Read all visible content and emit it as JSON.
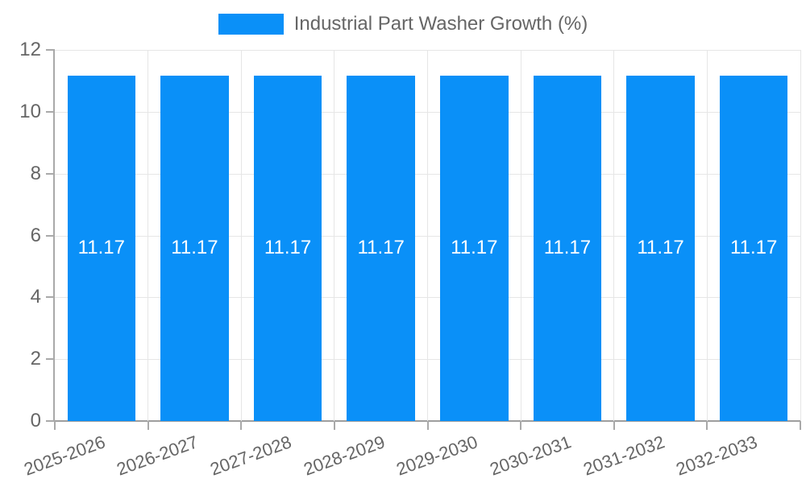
{
  "chart_data": {
    "type": "bar",
    "title": "",
    "legend": {
      "label": "Industrial Part Washer Growth (%)",
      "position": "top"
    },
    "categories": [
      "2025-2026",
      "2026-2027",
      "2027-2028",
      "2028-2029",
      "2029-2030",
      "2030-2031",
      "2031-2032",
      "2032-2033"
    ],
    "series": [
      {
        "name": "Industrial Part Washer Growth (%)",
        "values": [
          11.17,
          11.17,
          11.17,
          11.17,
          11.17,
          11.17,
          11.17,
          11.17
        ]
      }
    ],
    "value_label_decimals": 2,
    "xlabel": "",
    "ylabel": "",
    "ylim": [
      0,
      12
    ],
    "yticks": [
      0,
      2,
      4,
      6,
      8,
      10,
      12
    ],
    "grid": true,
    "colors": {
      "bar": "#0a90f8",
      "bar_label": "#ffffff",
      "axis_text": "#666666",
      "grid_line": "#e6e6e6",
      "axis_line": "#9e9e9e",
      "tick_mark": "#a9a9a9",
      "background": "#ffffff"
    }
  }
}
